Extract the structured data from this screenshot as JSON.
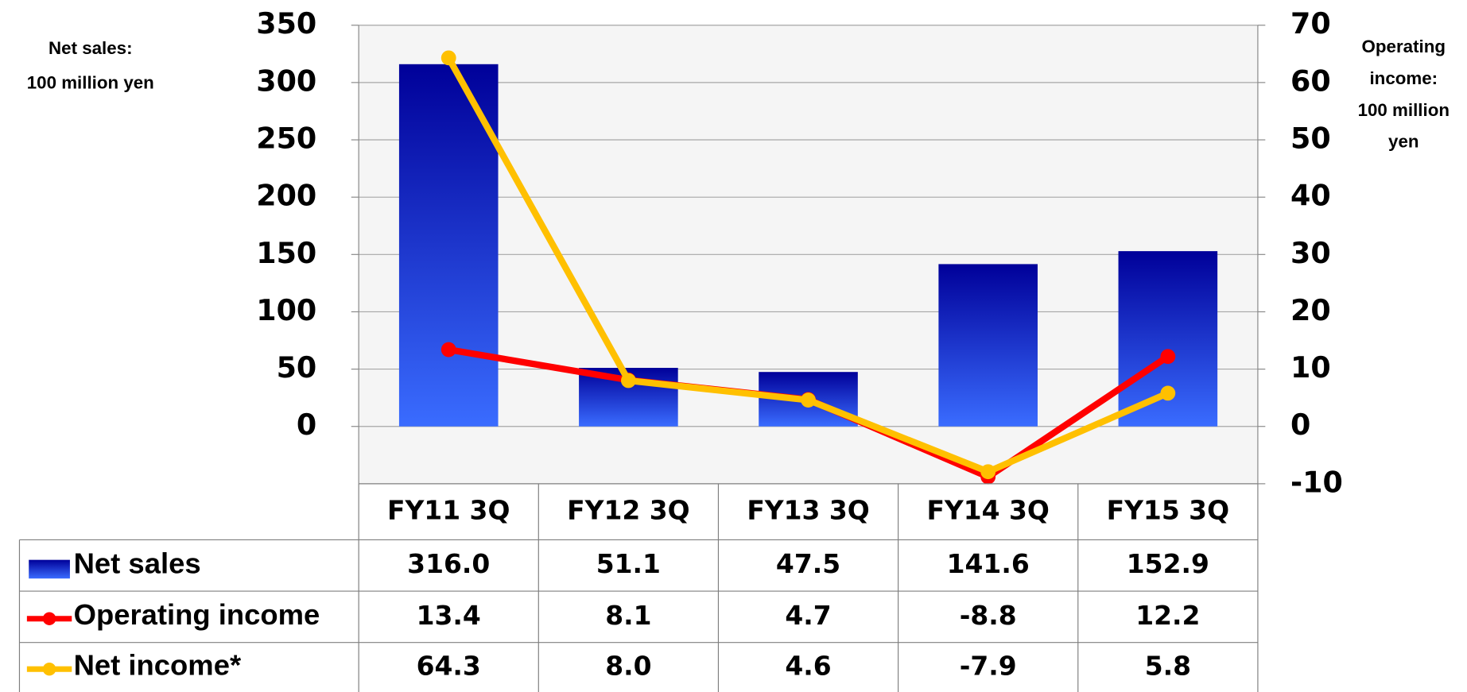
{
  "chart_data": {
    "type": "bar",
    "categories": [
      "FY11 3Q",
      "FY12 3Q",
      "FY13 3Q",
      "FY14 3Q",
      "FY15 3Q"
    ],
    "y_label": [
      "Net sales:",
      "100 million yen"
    ],
    "y2_label": [
      "Operating",
      "income:",
      "100 million",
      "yen"
    ],
    "ylim": [
      -50,
      350
    ],
    "yticks": [
      0,
      50,
      100,
      150,
      200,
      250,
      300,
      350
    ],
    "y2lim": [
      -10,
      70
    ],
    "y2ticks": [
      -10,
      0,
      10,
      20,
      30,
      40,
      50,
      60,
      70
    ],
    "grid": true,
    "series": [
      {
        "name": "Net sales",
        "type": "bar",
        "color": "#000099",
        "values": [
          316.0,
          51.1,
          47.5,
          141.6,
          152.9
        ],
        "value_labels": [
          "316.0",
          "51.1",
          "47.5",
          "141.6",
          "152.9"
        ]
      },
      {
        "name": "Operating income",
        "type": "line",
        "axis": "y2",
        "color": "#ff0000",
        "values": [
          13.4,
          8.1,
          4.7,
          -8.8,
          12.2
        ]
      },
      {
        "name": "Net income*",
        "type": "line",
        "axis": "y2",
        "color": "#ffc000",
        "values": [
          64.3,
          8.0,
          4.6,
          -7.9,
          5.8
        ],
        "value_labels": [
          "64.3",
          "8.0",
          "4.6",
          "-7.9",
          "5.8"
        ]
      }
    ]
  }
}
